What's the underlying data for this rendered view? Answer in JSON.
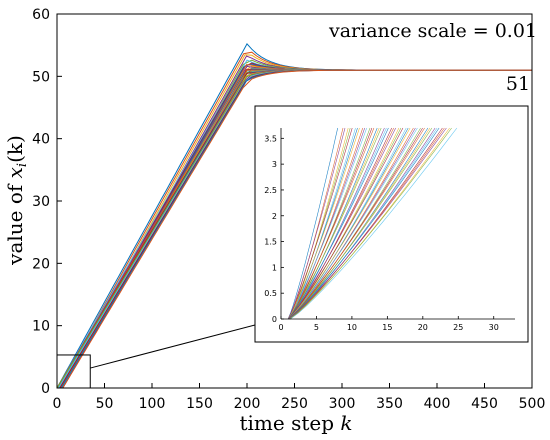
{
  "chart_data": [
    {
      "type": "line",
      "role": "main",
      "xlabel": "time step",
      "xlabel_var": "k",
      "ylabel_prefix": "value of ",
      "ylabel_var": "x",
      "ylabel_sub": "i",
      "ylabel_suffix": "(k)",
      "xlim": [
        0,
        500
      ],
      "ylim": [
        0,
        60
      ],
      "xticks": [
        0,
        50,
        100,
        150,
        200,
        250,
        300,
        350,
        400,
        450,
        500
      ],
      "yticks": [
        0,
        10,
        20,
        30,
        40,
        50,
        60
      ],
      "grid": false,
      "annotation_top": "variance scale = 0.01",
      "annotation_value": "51",
      "converged_value": 51,
      "ramp_end_step": 200,
      "settle_step": 300,
      "series_description": "many agent trajectories rising roughly linearly from 0 to a peak between 49 and 55 at k=200, then converging to 51",
      "series_peaks": [
        55.2,
        54.6,
        54.0,
        53.4,
        53.0,
        52.6,
        52.4,
        52.2,
        52.0,
        51.8,
        51.6,
        51.4,
        51.3,
        51.2,
        51.1,
        51.0,
        50.9,
        50.8,
        50.7,
        50.6,
        50.5,
        50.4,
        50.3,
        50.2,
        50.1,
        50.0,
        49.8,
        49.6,
        49.4,
        49.2
      ],
      "zoom_box": {
        "x": [
          0,
          35
        ],
        "y": [
          0,
          5.3
        ]
      }
    },
    {
      "type": "line",
      "role": "inset",
      "xlim": [
        0,
        33
      ],
      "ylim": [
        0,
        3.7
      ],
      "xticks": [
        0,
        5,
        10,
        15,
        20,
        25,
        30
      ],
      "yticks": [
        0,
        0.5,
        1,
        1.5,
        2,
        2.5,
        3,
        3.5
      ],
      "xtick_labels": [
        "0",
        "5",
        "10",
        "15",
        "20",
        "25",
        "30"
      ],
      "ytick_labels": [
        "0",
        "0.5",
        "1",
        "1.5",
        "2",
        "2.5",
        "3",
        "3.5"
      ],
      "series_description": "zoom of early trajectories: all start at x=0 near k=1, reaching 3.7 between k=8 and k=24"
    }
  ],
  "colors": [
    "#0072bd",
    "#d95319",
    "#edb120",
    "#7e2f8e",
    "#77ac30",
    "#4dbeee",
    "#a2142f"
  ]
}
